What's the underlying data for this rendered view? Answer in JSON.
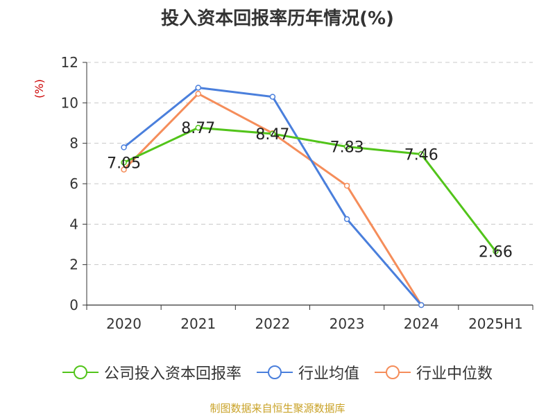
{
  "chart_data": {
    "type": "line",
    "title": "投入资本回报率历年情况(%)",
    "ylabel": "(%)",
    "xlabel": "",
    "categories": [
      "2020",
      "2021",
      "2022",
      "2023",
      "2024",
      "2025H1"
    ],
    "ylim": [
      0,
      12
    ],
    "yticks": [
      0,
      2,
      4,
      6,
      8,
      10,
      12
    ],
    "grid": true,
    "legend_position": "bottom",
    "series": [
      {
        "name": "公司投入资本回报率",
        "color": "#52c41a",
        "values": [
          7.05,
          8.77,
          8.47,
          7.83,
          7.46,
          2.66
        ],
        "labels": [
          "7.05",
          "8.77",
          "8.47",
          "7.83",
          "7.46",
          "2.66"
        ]
      },
      {
        "name": "行业均值",
        "color": "#4a7fdc",
        "values": [
          7.8,
          10.75,
          10.3,
          4.25,
          0,
          null
        ]
      },
      {
        "name": "行业中位数",
        "color": "#f58d5a",
        "values": [
          6.7,
          10.45,
          8.5,
          5.9,
          0,
          null
        ]
      }
    ]
  },
  "source": "制图数据来自恒生聚源数据库"
}
